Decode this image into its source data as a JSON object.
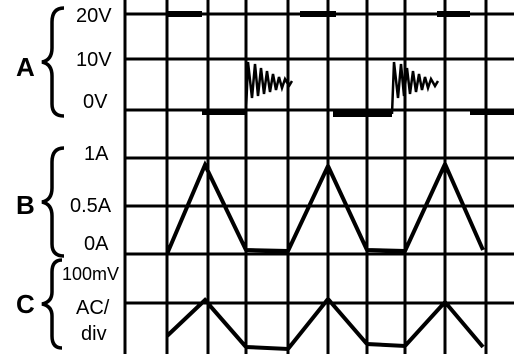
{
  "channels": [
    {
      "letter": "A",
      "labels": [
        "20V",
        "10V",
        "0V"
      ]
    },
    {
      "letter": "B",
      "labels": [
        "1A",
        "0.5A",
        "0A"
      ]
    },
    {
      "letter": "C",
      "labels": [
        "100mV",
        "AC/",
        "div"
      ]
    }
  ],
  "colors": {
    "ink": "#000000",
    "background": "#ffffff"
  }
}
